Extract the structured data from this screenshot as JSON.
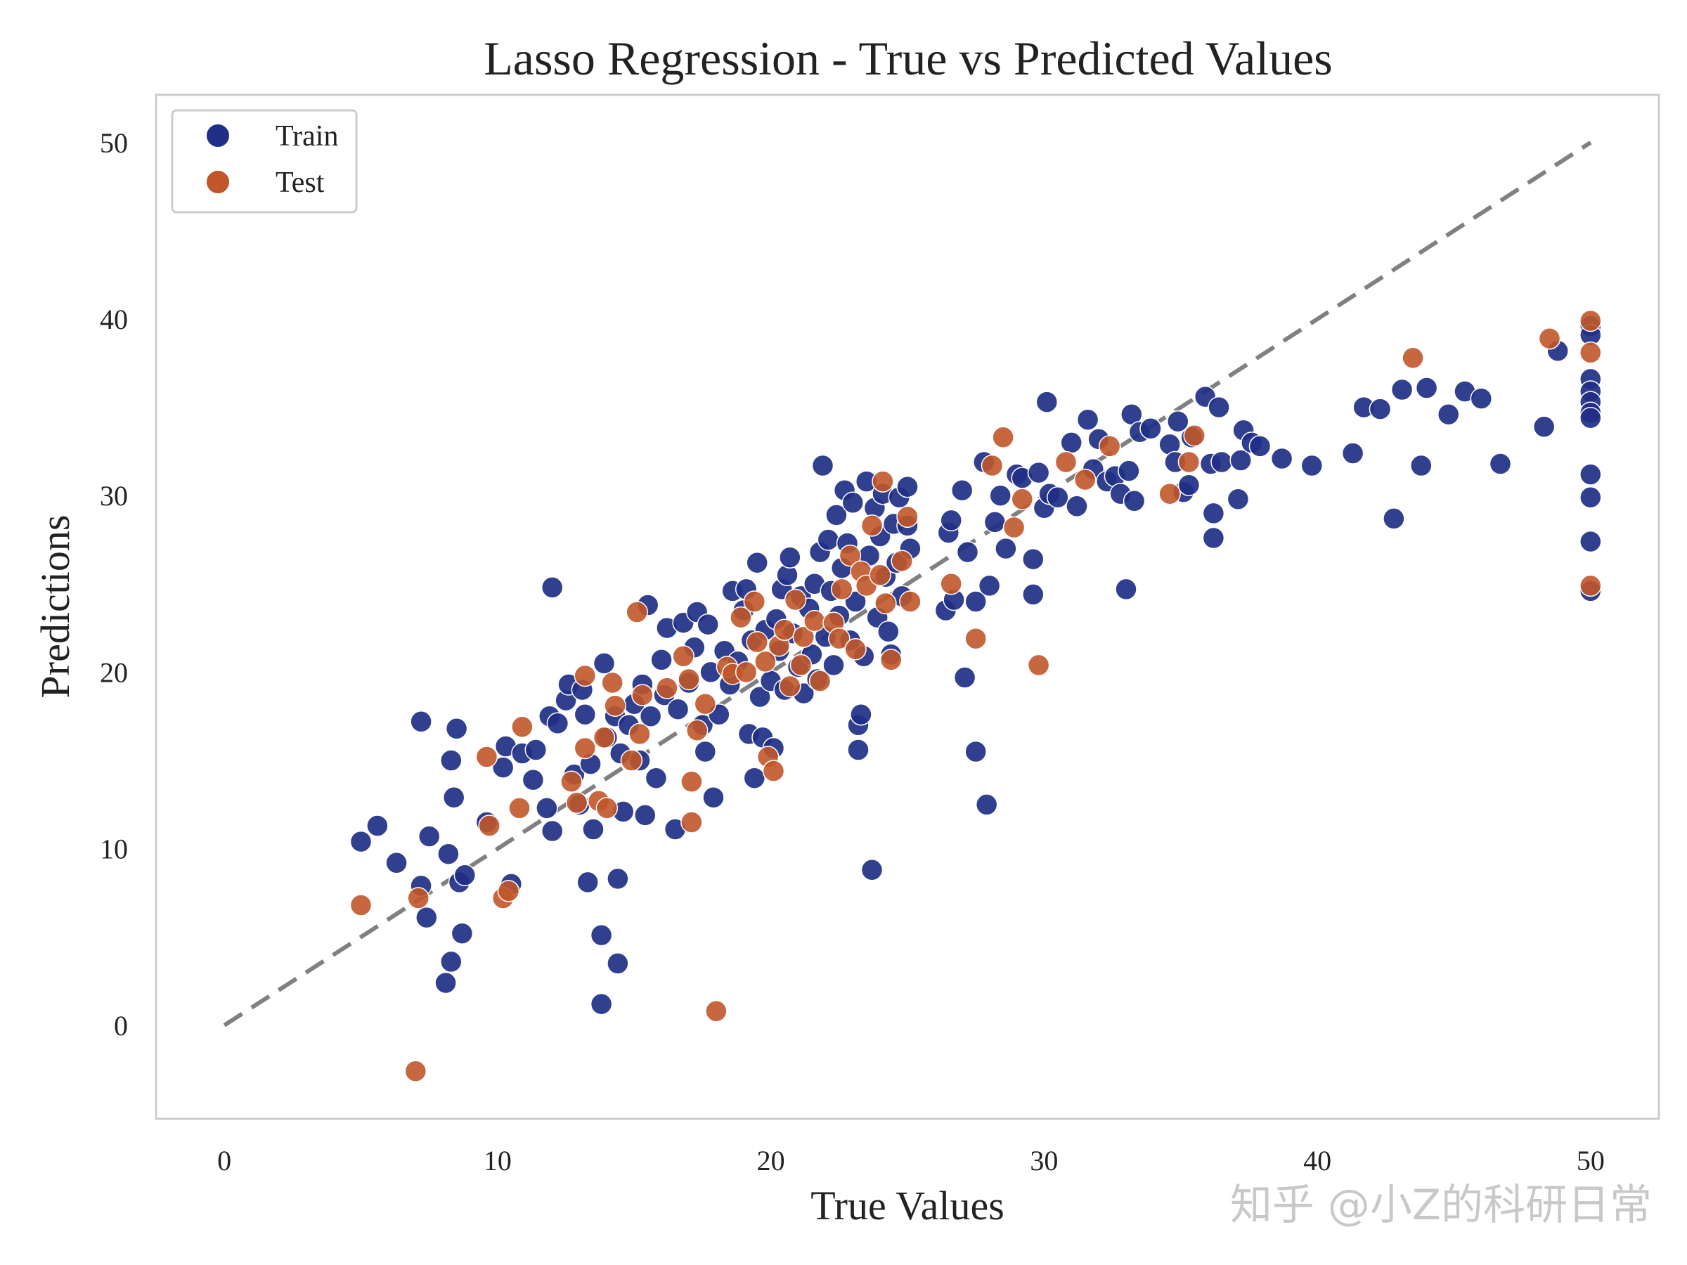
{
  "chart_data": {
    "type": "scatter",
    "title": "Lasso Regression - True vs Predicted Values",
    "xlabel": "True Values",
    "ylabel": "Predictions",
    "xlim": [
      -2.5,
      52.5
    ],
    "ylim": [
      -5.3,
      52.7
    ],
    "xticks": [
      "0",
      "10",
      "20",
      "30",
      "40",
      "50"
    ],
    "yticks": [
      "0",
      "10",
      "20",
      "30",
      "40",
      "50"
    ],
    "grid": false,
    "legend_position": "top-left",
    "reference_line": {
      "label": "y = x",
      "from": [
        0,
        0
      ],
      "to": [
        50,
        50
      ],
      "style": "dashed",
      "color": "#808080"
    },
    "series": [
      {
        "name": "Train",
        "color": "#1f2f86",
        "points": [
          [
            5.0,
            10.4
          ],
          [
            5.6,
            11.3
          ],
          [
            6.3,
            9.2
          ],
          [
            7.2,
            17.2
          ],
          [
            7.5,
            10.7
          ],
          [
            7.2,
            7.9
          ],
          [
            7.4,
            6.1
          ],
          [
            8.1,
            2.4
          ],
          [
            8.3,
            3.6
          ],
          [
            8.2,
            9.7
          ],
          [
            8.3,
            15.0
          ],
          [
            8.4,
            12.9
          ],
          [
            8.5,
            16.8
          ],
          [
            8.6,
            8.1
          ],
          [
            8.7,
            5.2
          ],
          [
            8.8,
            8.5
          ],
          [
            9.6,
            11.5
          ],
          [
            10.2,
            14.6
          ],
          [
            10.3,
            15.8
          ],
          [
            10.5,
            8.0
          ],
          [
            10.9,
            15.4
          ],
          [
            11.3,
            13.9
          ],
          [
            11.4,
            15.6
          ],
          [
            11.8,
            12.3
          ],
          [
            11.9,
            17.5
          ],
          [
            12.0,
            11.0
          ],
          [
            12.0,
            24.8
          ],
          [
            12.2,
            17.1
          ],
          [
            12.5,
            18.4
          ],
          [
            12.6,
            19.3
          ],
          [
            12.8,
            14.2
          ],
          [
            13.0,
            12.5
          ],
          [
            13.1,
            19.0
          ],
          [
            13.2,
            17.6
          ],
          [
            13.3,
            8.1
          ],
          [
            13.4,
            14.8
          ],
          [
            13.5,
            11.1
          ],
          [
            13.8,
            5.1
          ],
          [
            13.8,
            1.2
          ],
          [
            13.9,
            20.5
          ],
          [
            14.0,
            16.3
          ],
          [
            14.3,
            17.5
          ],
          [
            14.4,
            8.3
          ],
          [
            14.4,
            3.5
          ],
          [
            14.5,
            15.4
          ],
          [
            14.6,
            12.1
          ],
          [
            14.8,
            17.0
          ],
          [
            15.0,
            18.2
          ],
          [
            15.2,
            15.0
          ],
          [
            15.3,
            19.3
          ],
          [
            15.4,
            11.9
          ],
          [
            15.5,
            23.8
          ],
          [
            15.6,
            17.5
          ],
          [
            15.8,
            14.0
          ],
          [
            16.0,
            20.7
          ],
          [
            16.1,
            18.7
          ],
          [
            16.2,
            22.5
          ],
          [
            16.5,
            11.1
          ],
          [
            16.6,
            17.9
          ],
          [
            16.8,
            22.8
          ],
          [
            17.0,
            19.4
          ],
          [
            17.2,
            21.4
          ],
          [
            17.3,
            23.4
          ],
          [
            17.5,
            17.0
          ],
          [
            17.6,
            15.5
          ],
          [
            17.7,
            22.7
          ],
          [
            17.8,
            20.0
          ],
          [
            17.9,
            12.9
          ],
          [
            18.1,
            17.6
          ],
          [
            18.3,
            21.2
          ],
          [
            18.5,
            19.3
          ],
          [
            18.6,
            24.6
          ],
          [
            18.8,
            20.6
          ],
          [
            19.0,
            23.5
          ],
          [
            19.1,
            24.7
          ],
          [
            19.2,
            16.5
          ],
          [
            19.3,
            21.8
          ],
          [
            19.4,
            14.0
          ],
          [
            19.5,
            26.2
          ],
          [
            19.6,
            18.6
          ],
          [
            19.7,
            16.3
          ],
          [
            19.8,
            22.4
          ],
          [
            20.0,
            19.5
          ],
          [
            20.1,
            15.7
          ],
          [
            20.2,
            23.0
          ],
          [
            20.3,
            21.2
          ],
          [
            20.4,
            24.7
          ],
          [
            20.5,
            19.0
          ],
          [
            20.6,
            25.5
          ],
          [
            20.7,
            26.5
          ],
          [
            20.8,
            22.2
          ],
          [
            21.0,
            20.3
          ],
          [
            21.1,
            24.3
          ],
          [
            21.2,
            18.8
          ],
          [
            21.4,
            23.6
          ],
          [
            21.5,
            21.0
          ],
          [
            21.6,
            25.0
          ],
          [
            21.7,
            19.6
          ],
          [
            21.8,
            26.8
          ],
          [
            21.9,
            31.7
          ],
          [
            22.0,
            22.0
          ],
          [
            22.1,
            27.5
          ],
          [
            22.2,
            24.6
          ],
          [
            22.3,
            20.4
          ],
          [
            22.4,
            28.9
          ],
          [
            22.5,
            23.2
          ],
          [
            22.6,
            25.9
          ],
          [
            22.7,
            30.3
          ],
          [
            22.8,
            27.3
          ],
          [
            22.9,
            21.8
          ],
          [
            23.0,
            29.6
          ],
          [
            23.1,
            24.0
          ],
          [
            23.2,
            17.0
          ],
          [
            23.2,
            15.6
          ],
          [
            23.3,
            17.6
          ],
          [
            23.4,
            20.9
          ],
          [
            23.5,
            30.8
          ],
          [
            23.6,
            26.6
          ],
          [
            23.7,
            8.8
          ],
          [
            23.8,
            29.3
          ],
          [
            23.9,
            23.1
          ],
          [
            24.0,
            27.7
          ],
          [
            24.1,
            30.1
          ],
          [
            24.2,
            25.4
          ],
          [
            24.3,
            22.3
          ],
          [
            24.4,
            21.0
          ],
          [
            24.5,
            28.4
          ],
          [
            24.6,
            26.2
          ],
          [
            24.7,
            29.9
          ],
          [
            24.8,
            24.3
          ],
          [
            25.0,
            30.5
          ],
          [
            25.0,
            28.3
          ],
          [
            25.1,
            27.0
          ],
          [
            26.4,
            23.5
          ],
          [
            26.5,
            27.9
          ],
          [
            26.6,
            28.6
          ],
          [
            26.7,
            24.1
          ],
          [
            27.0,
            30.3
          ],
          [
            27.1,
            19.7
          ],
          [
            27.2,
            26.8
          ],
          [
            27.5,
            24.0
          ],
          [
            27.5,
            15.5
          ],
          [
            27.8,
            31.9
          ],
          [
            27.9,
            12.5
          ],
          [
            28.0,
            24.9
          ],
          [
            28.2,
            28.5
          ],
          [
            28.4,
            30.0
          ],
          [
            28.6,
            27.0
          ],
          [
            29.0,
            31.2
          ],
          [
            29.2,
            31.0
          ],
          [
            29.6,
            26.4
          ],
          [
            29.6,
            24.4
          ],
          [
            29.8,
            31.3
          ],
          [
            30.0,
            29.3
          ],
          [
            30.1,
            35.3
          ],
          [
            30.2,
            30.1
          ],
          [
            30.5,
            29.9
          ],
          [
            31.0,
            33.0
          ],
          [
            31.2,
            29.4
          ],
          [
            31.6,
            34.3
          ],
          [
            31.8,
            31.5
          ],
          [
            32.0,
            33.2
          ],
          [
            32.3,
            30.8
          ],
          [
            32.6,
            31.1
          ],
          [
            32.8,
            30.1
          ],
          [
            33.0,
            24.7
          ],
          [
            33.1,
            31.4
          ],
          [
            33.2,
            34.6
          ],
          [
            33.3,
            29.7
          ],
          [
            33.5,
            33.6
          ],
          [
            33.9,
            33.8
          ],
          [
            34.6,
            32.9
          ],
          [
            34.8,
            31.9
          ],
          [
            34.9,
            34.2
          ],
          [
            35.1,
            30.2
          ],
          [
            35.3,
            30.6
          ],
          [
            35.4,
            33.3
          ],
          [
            35.9,
            35.6
          ],
          [
            36.1,
            31.8
          ],
          [
            36.2,
            27.6
          ],
          [
            36.2,
            29.0
          ],
          [
            36.4,
            35.0
          ],
          [
            36.5,
            31.9
          ],
          [
            37.1,
            29.8
          ],
          [
            37.2,
            32.0
          ],
          [
            37.3,
            33.7
          ],
          [
            37.6,
            33.0
          ],
          [
            37.9,
            32.8
          ],
          [
            38.7,
            32.1
          ],
          [
            39.8,
            31.7
          ],
          [
            41.3,
            32.4
          ],
          [
            41.7,
            35.0
          ],
          [
            42.3,
            34.9
          ],
          [
            42.8,
            28.7
          ],
          [
            43.1,
            36.0
          ],
          [
            43.8,
            31.7
          ],
          [
            44.0,
            36.1
          ],
          [
            44.8,
            34.6
          ],
          [
            45.4,
            35.9
          ],
          [
            46.0,
            35.5
          ],
          [
            46.7,
            31.8
          ],
          [
            48.3,
            33.9
          ],
          [
            48.8,
            38.2
          ],
          [
            50.0,
            39.6
          ],
          [
            50.0,
            39.1
          ],
          [
            50.0,
            36.6
          ],
          [
            50.0,
            35.9
          ],
          [
            50.0,
            35.3
          ],
          [
            50.0,
            34.7
          ],
          [
            50.0,
            34.4
          ],
          [
            50.0,
            31.2
          ],
          [
            50.0,
            29.9
          ],
          [
            50.0,
            27.4
          ],
          [
            50.0,
            24.6
          ]
        ]
      },
      {
        "name": "Test",
        "color": "#c0562a",
        "points": [
          [
            5.0,
            6.8
          ],
          [
            7.0,
            -2.6
          ],
          [
            7.1,
            7.2
          ],
          [
            9.6,
            15.2
          ],
          [
            9.7,
            11.3
          ],
          [
            10.2,
            7.2
          ],
          [
            10.4,
            7.6
          ],
          [
            10.8,
            12.3
          ],
          [
            10.9,
            16.9
          ],
          [
            12.7,
            13.8
          ],
          [
            12.9,
            12.6
          ],
          [
            13.2,
            15.7
          ],
          [
            13.2,
            19.8
          ],
          [
            13.7,
            12.7
          ],
          [
            13.9,
            16.3
          ],
          [
            14.0,
            12.3
          ],
          [
            14.2,
            19.4
          ],
          [
            14.3,
            18.1
          ],
          [
            14.9,
            15.0
          ],
          [
            15.1,
            23.4
          ],
          [
            15.2,
            16.5
          ],
          [
            15.3,
            18.7
          ],
          [
            16.2,
            19.1
          ],
          [
            16.8,
            20.9
          ],
          [
            17.0,
            19.6
          ],
          [
            17.1,
            11.5
          ],
          [
            17.1,
            13.8
          ],
          [
            17.3,
            16.7
          ],
          [
            17.6,
            18.2
          ],
          [
            18.0,
            0.8
          ],
          [
            18.4,
            20.3
          ],
          [
            18.6,
            19.9
          ],
          [
            18.9,
            23.1
          ],
          [
            19.1,
            20.0
          ],
          [
            19.4,
            24.0
          ],
          [
            19.5,
            21.7
          ],
          [
            19.8,
            20.6
          ],
          [
            19.9,
            15.2
          ],
          [
            20.1,
            14.4
          ],
          [
            20.3,
            21.5
          ],
          [
            20.5,
            22.4
          ],
          [
            20.7,
            19.2
          ],
          [
            20.9,
            24.1
          ],
          [
            21.1,
            20.4
          ],
          [
            21.2,
            22.0
          ],
          [
            21.6,
            22.9
          ],
          [
            21.8,
            19.5
          ],
          [
            22.3,
            22.8
          ],
          [
            22.5,
            21.9
          ],
          [
            22.6,
            24.7
          ],
          [
            22.9,
            26.6
          ],
          [
            23.1,
            21.3
          ],
          [
            23.3,
            25.7
          ],
          [
            23.5,
            24.9
          ],
          [
            23.7,
            28.3
          ],
          [
            24.0,
            25.5
          ],
          [
            24.1,
            30.8
          ],
          [
            24.2,
            23.9
          ],
          [
            24.4,
            20.7
          ],
          [
            24.8,
            26.3
          ],
          [
            25.0,
            28.8
          ],
          [
            25.1,
            24.0
          ],
          [
            26.6,
            25.0
          ],
          [
            27.5,
            21.9
          ],
          [
            28.1,
            31.7
          ],
          [
            28.5,
            33.3
          ],
          [
            28.9,
            28.2
          ],
          [
            29.2,
            29.8
          ],
          [
            29.8,
            20.4
          ],
          [
            30.8,
            31.9
          ],
          [
            31.5,
            30.9
          ],
          [
            32.4,
            32.8
          ],
          [
            34.6,
            30.1
          ],
          [
            35.3,
            31.9
          ],
          [
            35.5,
            33.4
          ],
          [
            43.5,
            37.8
          ],
          [
            48.5,
            38.9
          ],
          [
            50.0,
            39.9
          ],
          [
            50.0,
            38.1
          ],
          [
            50.0,
            24.9
          ]
        ]
      }
    ]
  },
  "watermark": {
    "text": "知乎 @小Z的科研日常"
  },
  "colors": {
    "train": "#1f2f86",
    "test": "#c0562a",
    "reference_line": "#808080",
    "frame": "#cccccc"
  }
}
